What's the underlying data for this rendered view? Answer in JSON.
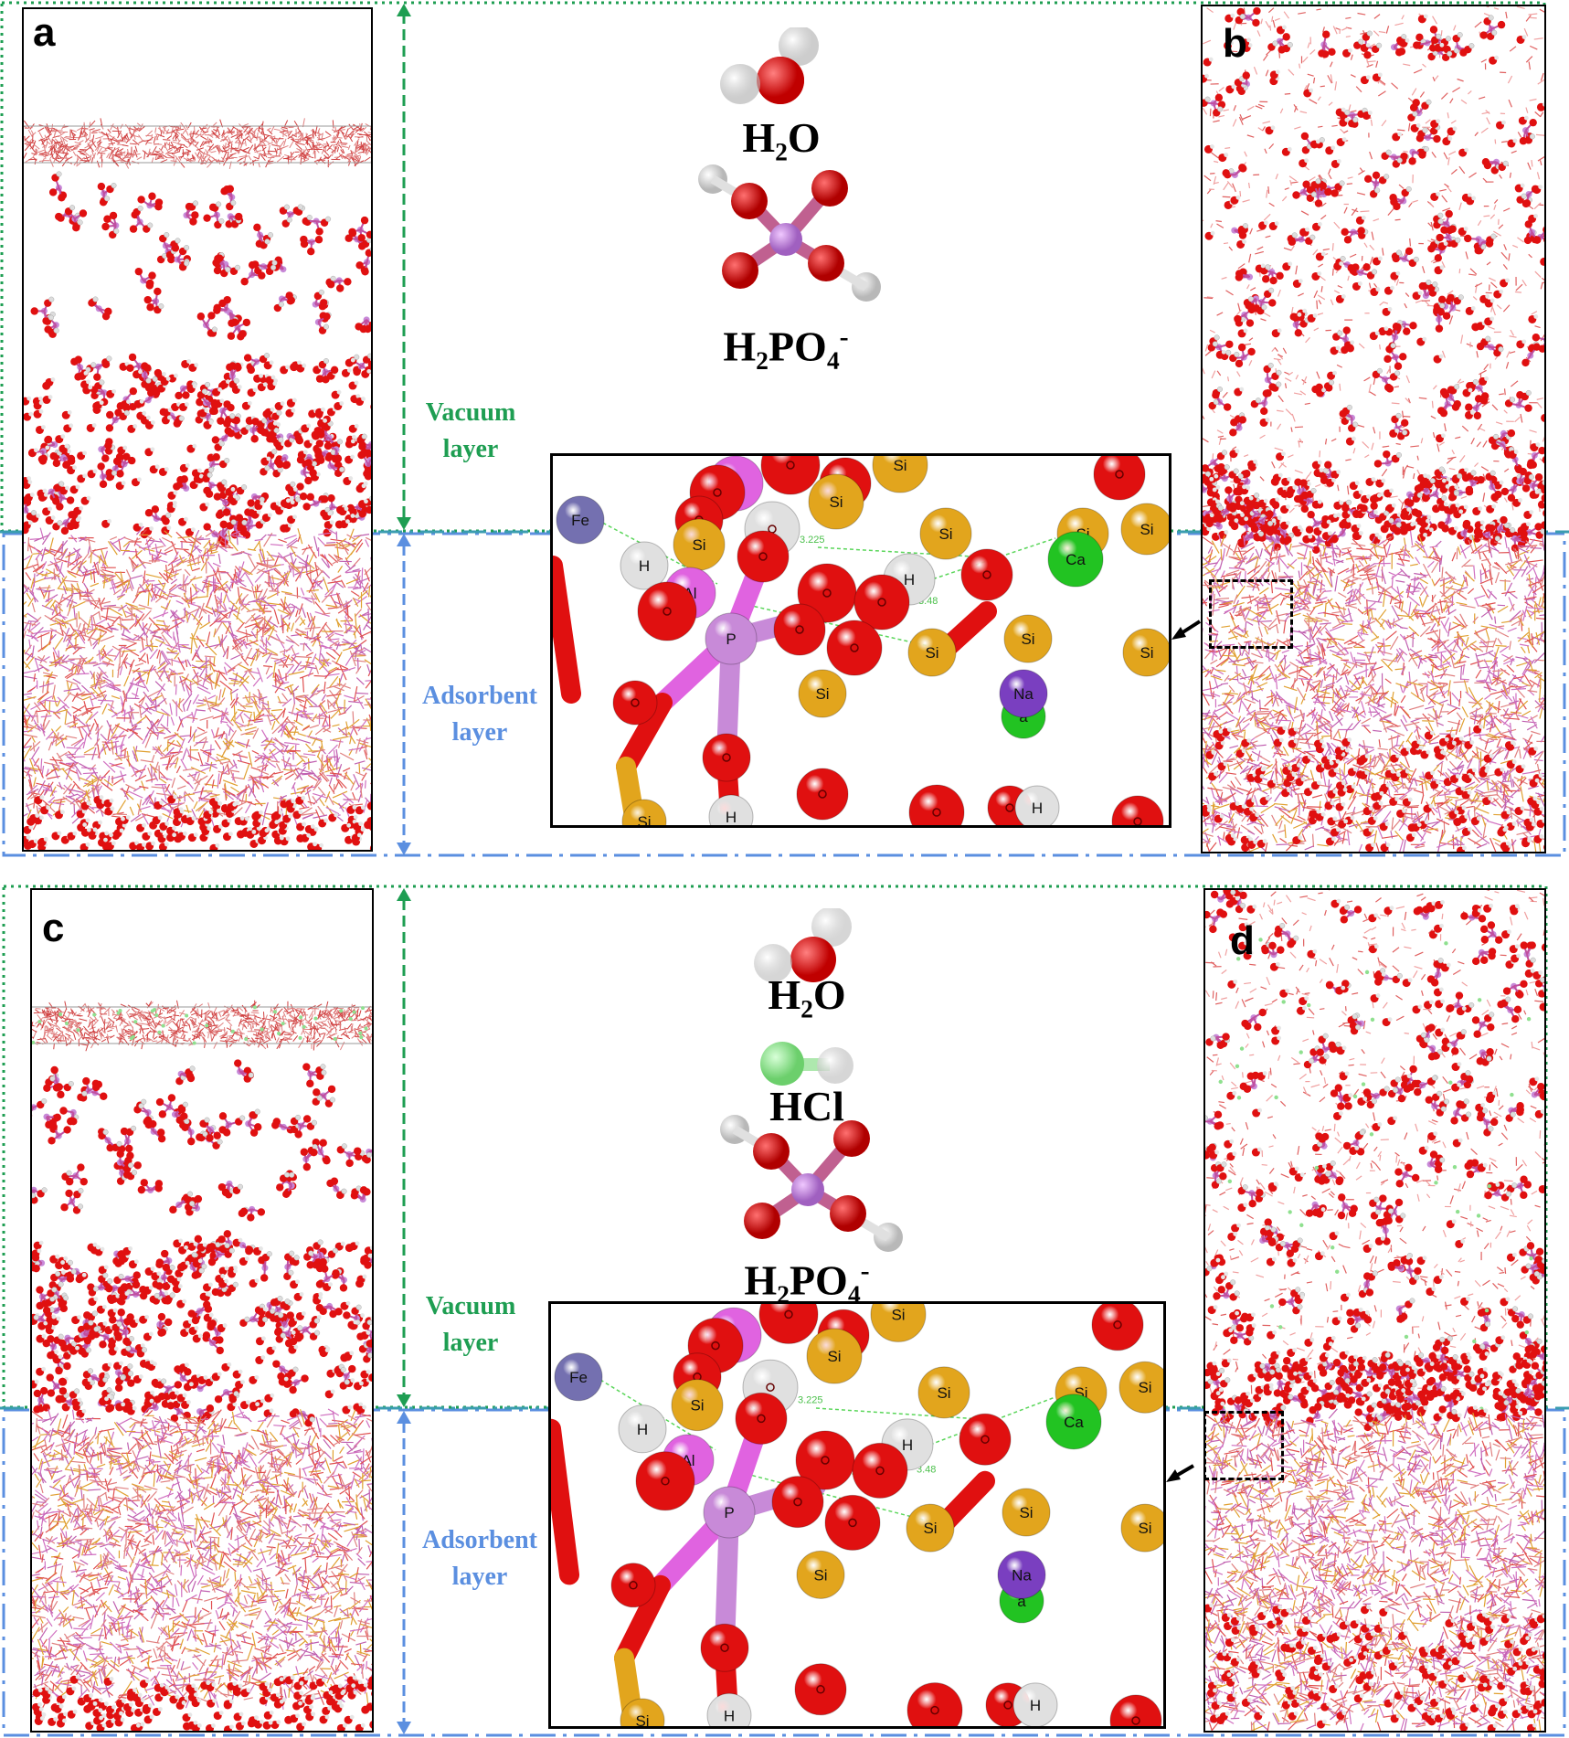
{
  "panels": {
    "a": {
      "label": "a"
    },
    "b": {
      "label": "b"
    },
    "c": {
      "label": "c"
    },
    "d": {
      "label": "d"
    }
  },
  "top_molecules": {
    "water": "H₂O",
    "phosphate_main": "H₂PO₄",
    "phosphate_charge": "-"
  },
  "bottom_molecules": {
    "water": "H₂O",
    "hcl": "HCl",
    "phosphate_main": "H₂PO₄",
    "phosphate_charge": "-"
  },
  "layers": {
    "vacuum_line1": "Vacuum",
    "vacuum_line2": "layer",
    "adsorbent_line1": "Adsorbent",
    "adsorbent_line2": "layer"
  },
  "inset_atoms": [
    "Fe",
    "Si",
    "Si",
    "Si",
    "Si",
    "Si",
    "Si",
    "Si",
    "Si",
    "Si",
    "Al",
    "P",
    "H",
    "H",
    "H",
    "H",
    "Ca",
    "Na",
    "a",
    "Ca"
  ],
  "inset_distances": [
    "3.225",
    "3.48"
  ],
  "colors": {
    "oxygen": "#e01010",
    "silicon": "#e2a51d",
    "phosphorus": "#c88ad8",
    "aluminum": "#e063e0",
    "hydrogen": "#f2f2f2",
    "iron": "#7470b0",
    "calcium": "#22c322",
    "sodium": "#7a3fc0",
    "chlorine": "#8fe08f",
    "vacuum": "#1e9e52",
    "adsorbent": "#5b8fe0"
  }
}
